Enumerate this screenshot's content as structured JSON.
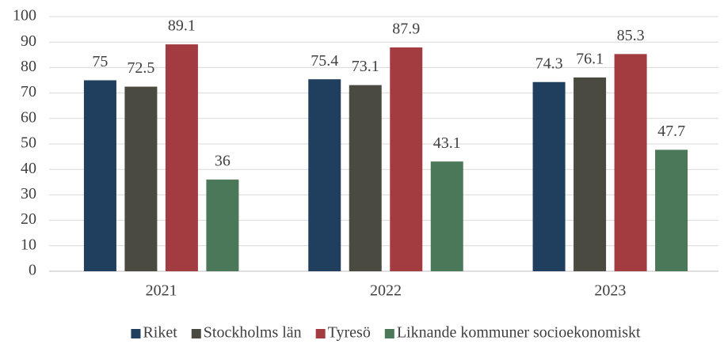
{
  "chart_data": {
    "type": "bar",
    "categories": [
      "2021",
      "2022",
      "2023"
    ],
    "series": [
      {
        "name": "Riket",
        "color": "#203f5e",
        "values": [
          75,
          75.4,
          74.3
        ]
      },
      {
        "name": "Stockholms län",
        "color": "#4b4a40",
        "values": [
          72.5,
          73.1,
          76.1
        ]
      },
      {
        "name": "Tyresö",
        "color": "#a23c41",
        "values": [
          89.1,
          87.9,
          85.3
        ]
      },
      {
        "name": "Liknande kommuner socioekonomiskt",
        "color": "#4b7859",
        "values": [
          36,
          43.1,
          47.7
        ]
      }
    ],
    "ylim": [
      0,
      100
    ],
    "yticks": [
      0,
      10,
      20,
      30,
      40,
      50,
      60,
      70,
      80,
      90,
      100
    ],
    "grid": true,
    "legend": "bottom"
  }
}
